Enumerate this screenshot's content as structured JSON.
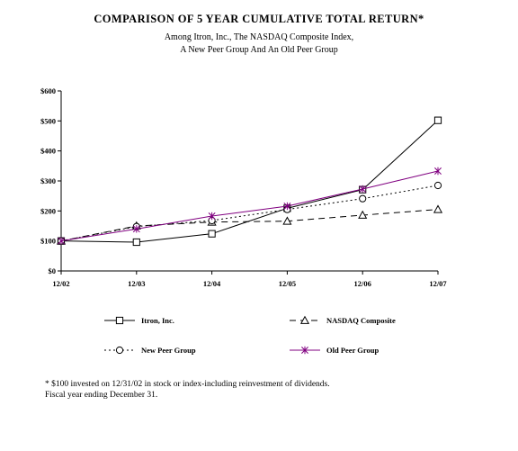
{
  "page": {
    "title": "COMPARISON OF 5 YEAR CUMULATIVE TOTAL RETURN*",
    "subtitle_line1": "Among Itron, Inc., The NASDAQ Composite Index,",
    "subtitle_line2": "A New Peer Group And An Old Peer Group",
    "footnote_line1": "* $100 invested on 12/31/02 in stock or index-including reinvestment of dividends.",
    "footnote_line2": "Fiscal year ending December 31."
  },
  "chart_data": {
    "type": "line",
    "title": "COMPARISON OF 5 YEAR CUMULATIVE TOTAL RETURN*",
    "x": [
      "12/02",
      "12/03",
      "12/04",
      "12/05",
      "12/06",
      "12/07"
    ],
    "ylim": [
      0,
      600
    ],
    "y_ticks": [
      0,
      100,
      200,
      300,
      400,
      500,
      600
    ],
    "y_tick_labels": [
      "$0",
      "$100",
      "$200",
      "$300",
      "$400",
      "$500",
      "$600"
    ],
    "grid": false,
    "legend_position": "bottom",
    "series": [
      {
        "name": "Itron, Inc.",
        "values": [
          100,
          96,
          124,
          209,
          271,
          502
        ],
        "color": "#000000",
        "marker": "square",
        "dash": "solid"
      },
      {
        "name": "NASDAQ Composite",
        "values": [
          100,
          150,
          163,
          166,
          186,
          205
        ],
        "color": "#000000",
        "marker": "triangle",
        "dash": "dashed"
      },
      {
        "name": "New Peer Group",
        "values": [
          100,
          148,
          168,
          205,
          241,
          285
        ],
        "color": "#000000",
        "marker": "circle",
        "dash": "dotted"
      },
      {
        "name": "Old Peer Group",
        "values": [
          100,
          140,
          183,
          216,
          273,
          333
        ],
        "color": "#800080",
        "marker": "star",
        "dash": "solid"
      }
    ]
  }
}
